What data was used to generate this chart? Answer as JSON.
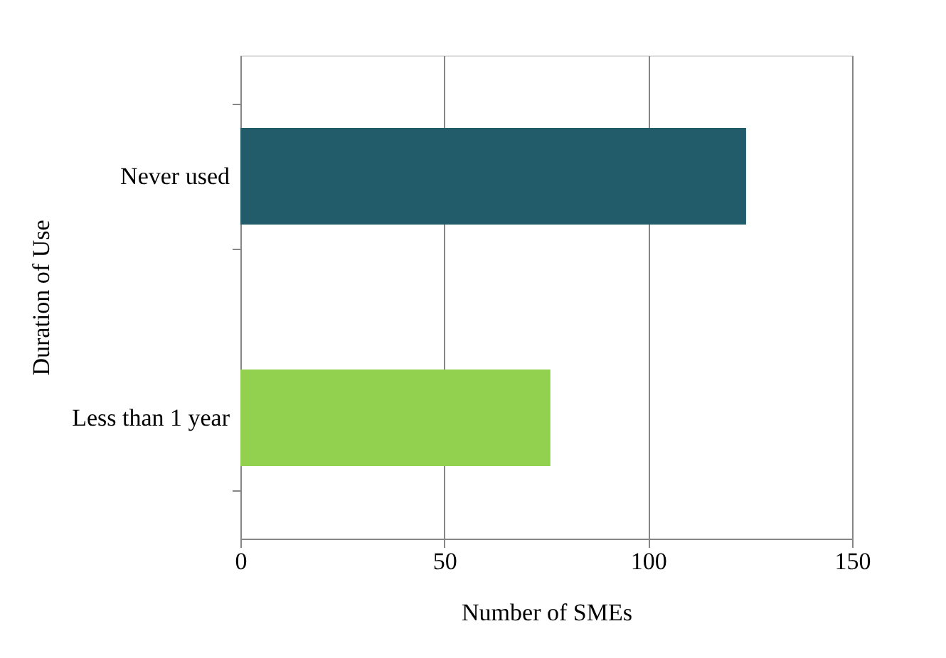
{
  "chart_data": {
    "type": "bar",
    "orientation": "horizontal",
    "xlabel": "Number of SMEs",
    "ylabel": "Duration of Use",
    "categories": [
      "Never used",
      "Less than 1 year"
    ],
    "values": [
      124,
      76
    ],
    "colors": [
      "#225b6a",
      "#92d050"
    ],
    "xlim": [
      0,
      150
    ],
    "xticks": [
      0,
      50,
      100,
      150
    ],
    "grid": "x"
  }
}
